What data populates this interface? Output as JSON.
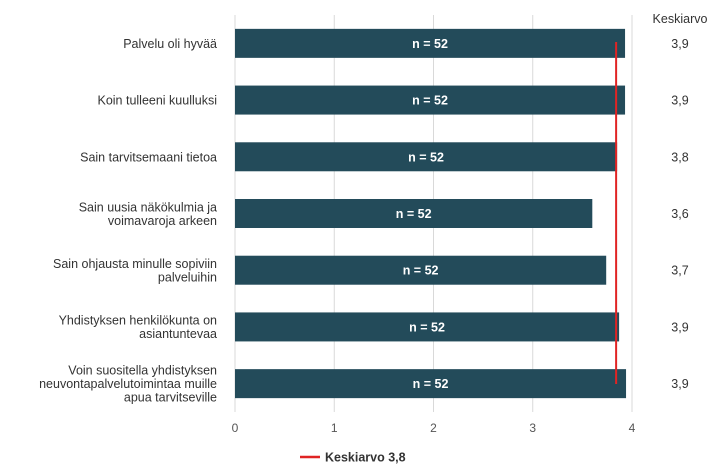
{
  "chart_data": {
    "type": "bar",
    "orientation": "horizontal",
    "categories": [
      [
        "Palvelu oli hyvää"
      ],
      [
        "Koin tulleeni kuulluksi"
      ],
      [
        "Sain tarvitsemaani tietoa"
      ],
      [
        "Sain uusia näkökulmia ja",
        "voimavaroja arkeen"
      ],
      [
        "Sain ohjausta minulle sopiviin",
        "palveluihin"
      ],
      [
        "Yhdistyksen henkilökunta on",
        "asiantuntevaa"
      ],
      [
        "Voin suositella yhdistyksen",
        "neuvontapalvelutoimintaa muille",
        "apua tarvitseville"
      ]
    ],
    "values": [
      3.93,
      3.93,
      3.85,
      3.6,
      3.74,
      3.87,
      3.94
    ],
    "bar_labels": [
      "n = 52",
      "n = 52",
      "n = 52",
      "n = 52",
      "n = 52",
      "n = 52",
      "n = 52"
    ],
    "mean_header": "Keskiarvo",
    "means": [
      "3,9",
      "3,9",
      "3,8",
      "3,6",
      "3,7",
      "3,9",
      "3,9"
    ],
    "overall_mean": 3.84,
    "legend": {
      "label": "Keskiarvo 3,8",
      "position": "bottom-center"
    },
    "xlim": [
      0,
      4
    ],
    "xticks": [
      "0",
      "1",
      "2",
      "3",
      "4"
    ],
    "grid": true,
    "colors": {
      "bar": "#234b5a",
      "mean_line": "#e02424",
      "grid": "#d9d9d9"
    }
  }
}
